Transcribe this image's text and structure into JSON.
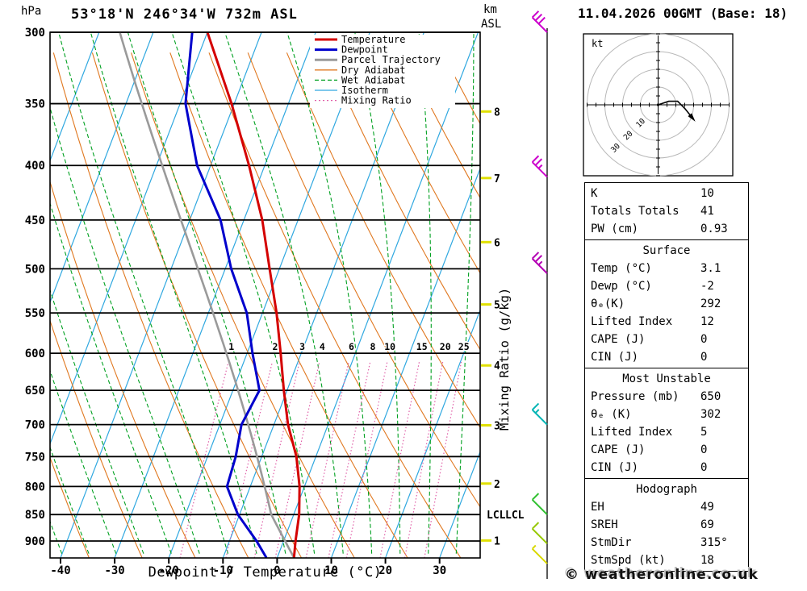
{
  "header": {
    "left_axis_unit": "hPa",
    "title": "53°18'N 246°34'W 732m ASL",
    "right_axis_unit_line1": "km",
    "right_axis_unit_line2": "ASL",
    "date": "11.04.2026 00GMT (Base: 18)"
  },
  "chart_data": {
    "type": "line",
    "variant": "skew-t-log-p",
    "xlabel": "Dewpoint / Temperature (°C)",
    "ylabel_unit": "hPa",
    "x_ticks_c": [
      -40,
      -30,
      -20,
      -10,
      0,
      10,
      20,
      30
    ],
    "pressure_levels_hpa": [
      300,
      350,
      400,
      450,
      500,
      550,
      600,
      650,
      700,
      750,
      800,
      850,
      900
    ],
    "pressure_range_hpa": [
      300,
      933
    ],
    "km_asl_ticks": [
      {
        "km": 1,
        "pressure": 899
      },
      {
        "km": 2,
        "pressure": 795
      },
      {
        "km": 3,
        "pressure": 701
      },
      {
        "km": 4,
        "pressure": 616
      },
      {
        "km": 5,
        "pressure": 540
      },
      {
        "km": 6,
        "pressure": 472
      },
      {
        "km": 7,
        "pressure": 411
      },
      {
        "km": 8,
        "pressure": 356
      }
    ],
    "mixing_ratio_lines_gkg": [
      1,
      2,
      3,
      4,
      6,
      8,
      10,
      15,
      20,
      25
    ],
    "mixing_ratio_axis_label": "Mixing Ratio (g/kg)",
    "lcl": {
      "label": "LCL",
      "pressure": 850
    },
    "isotherm_step_c": 10,
    "dry_adiabat_step_c": 10,
    "wet_adiabat_step_c": 5,
    "sounding": {
      "pressure": [
        933,
        900,
        850,
        800,
        750,
        700,
        650,
        600,
        550,
        500,
        450,
        400,
        350,
        300
      ],
      "temperature": [
        3.1,
        2.2,
        1.0,
        -0.9,
        -3.6,
        -7.4,
        -10.6,
        -13.8,
        -17.4,
        -21.8,
        -26.6,
        -32.9,
        -40.5,
        -50.0
      ],
      "dewpoint": [
        -2,
        -5,
        -10.3,
        -14.3,
        -14.8,
        -16.0,
        -15.1,
        -19.0,
        -22.9,
        -28.9,
        -34.3,
        -42.5,
        -49.0,
        -52.8
      ]
    },
    "parcel": {
      "surface_pressure": 933,
      "surface_temp": 3.1,
      "lcl_pressure": 850
    },
    "wind_barbs": [
      {
        "pressure": 300,
        "speed_kt": 30,
        "color": "#cc00cc"
      },
      {
        "pressure": 410,
        "speed_kt": 25,
        "color": "#cc00cc"
      },
      {
        "pressure": 505,
        "speed_kt": 25,
        "color": "#b400b4"
      },
      {
        "pressure": 700,
        "speed_kt": 15,
        "color": "#00b4b4"
      },
      {
        "pressure": 850,
        "speed_kt": 10,
        "color": "#30c030"
      },
      {
        "pressure": 905,
        "speed_kt": 10,
        "color": "#96c800"
      },
      {
        "pressure": 945,
        "speed_kt": 5,
        "color": "#d8d800"
      }
    ],
    "legend": [
      {
        "label": "Temperature",
        "color": "#d40000",
        "width": 3,
        "dash": ""
      },
      {
        "label": "Dewpoint",
        "color": "#0000cc",
        "width": 3,
        "dash": ""
      },
      {
        "label": "Parcel Trajectory",
        "color": "#9a9a9a",
        "width": 3,
        "dash": ""
      },
      {
        "label": "Dry Adiabat",
        "color": "#e07820",
        "width": 1.3,
        "dash": ""
      },
      {
        "label": "Wet Adiabat",
        "color": "#00a020",
        "width": 1.3,
        "dash": "5,3"
      },
      {
        "label": "Isotherm",
        "color": "#30a8e0",
        "width": 1.3,
        "dash": ""
      },
      {
        "label": "Mixing Ratio",
        "color": "#e060a8",
        "width": 1.3,
        "dash": "2,3"
      }
    ],
    "colors": {
      "temperature": "#d40000",
      "dewpoint": "#0000cc",
      "parcel": "#9a9a9a",
      "dry_adiabat": "#e07820",
      "wet_adiabat": "#00a020",
      "isotherm": "#30a8e0",
      "mixing_ratio": "#e060a8",
      "km_tick": "#e0e000"
    }
  },
  "hodograph": {
    "unit_label": "kt",
    "ring_step_kt": 10,
    "ring_labels": [
      10,
      20,
      30
    ],
    "trace_kt": [
      [
        0,
        0
      ],
      [
        6,
        2
      ],
      [
        11,
        2
      ],
      [
        15,
        -2
      ],
      [
        19,
        -7
      ]
    ]
  },
  "table": {
    "sections": [
      {
        "rows": [
          [
            "K",
            "10"
          ],
          [
            "Totals Totals",
            "41"
          ],
          [
            "PW (cm)",
            "0.93"
          ]
        ]
      },
      {
        "header": "Surface",
        "rows": [
          [
            "Temp (°C)",
            "3.1"
          ],
          [
            "Dewp (°C)",
            "-2"
          ],
          [
            "θₑ(K)",
            "292"
          ],
          [
            "Lifted Index",
            "12"
          ],
          [
            "CAPE (J)",
            "0"
          ],
          [
            "CIN (J)",
            "0"
          ]
        ]
      },
      {
        "header": "Most Unstable",
        "rows": [
          [
            "Pressure (mb)",
            "650"
          ],
          [
            "θₑ (K)",
            "302"
          ],
          [
            "Lifted Index",
            "5"
          ],
          [
            "CAPE (J)",
            "0"
          ],
          [
            "CIN (J)",
            "0"
          ]
        ]
      },
      {
        "header": "Hodograph",
        "rows": [
          [
            "EH",
            "49"
          ],
          [
            "SREH",
            "69"
          ],
          [
            "StmDir",
            "315°"
          ],
          [
            "StmSpd (kt)",
            "18"
          ]
        ]
      }
    ]
  },
  "footer": {
    "copyright": "© weatheronline.co.uk"
  }
}
